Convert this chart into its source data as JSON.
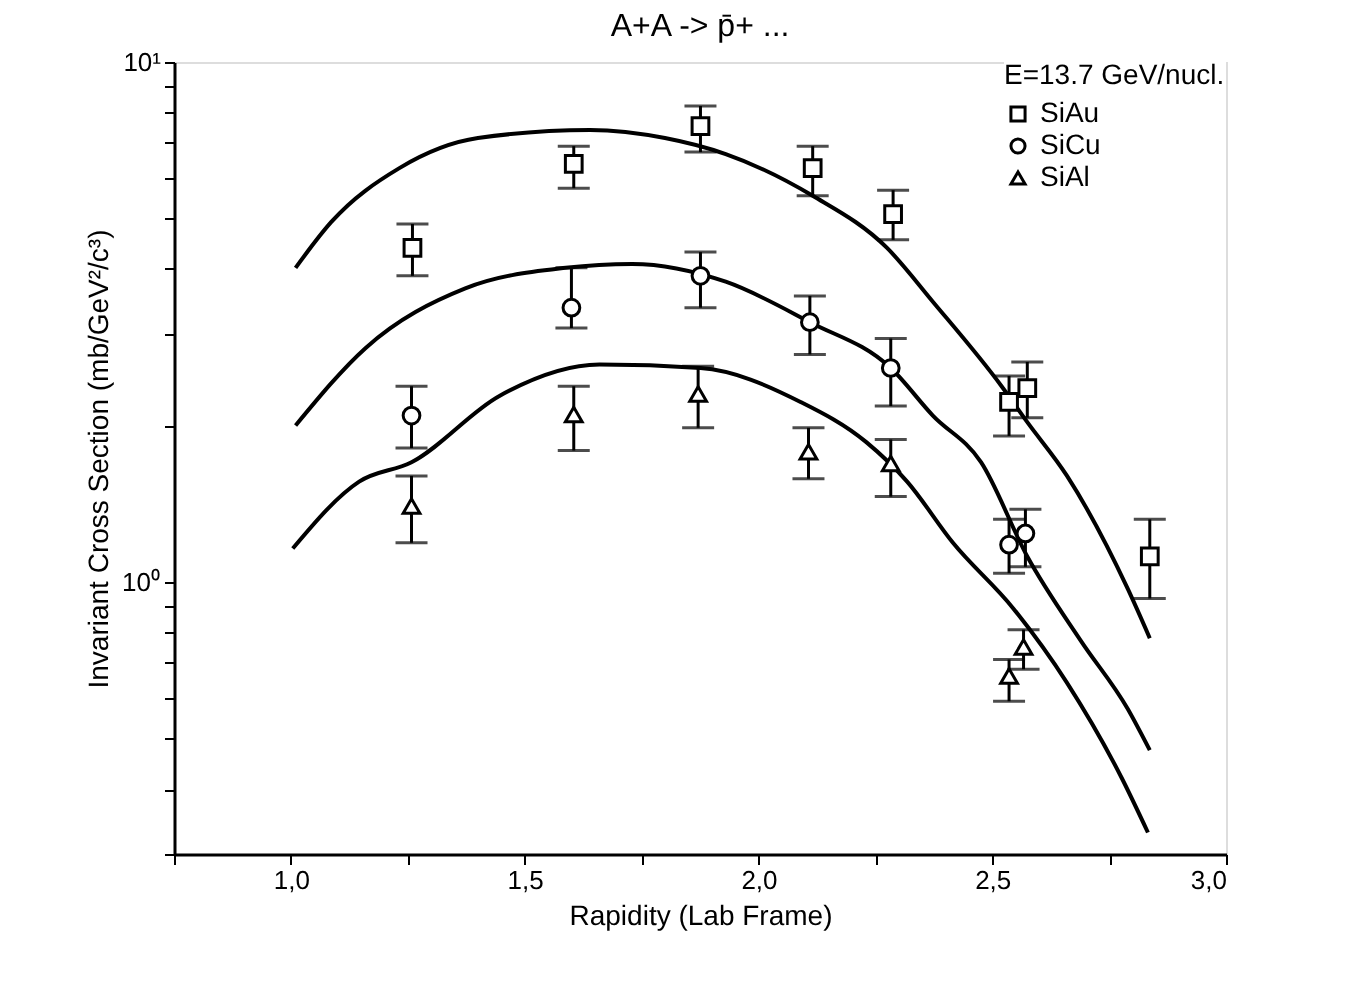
{
  "chart_data": {
    "type": "scatter",
    "title": "A+A -> p̄+ ...",
    "xlabel": "Rapidity (Lab Frame)",
    "ylabel": "Invariant Cross Section (mb/GeV²/c³)",
    "legend_title": "E=13.7 GeV/nucl.",
    "legend": "top right",
    "grid": false,
    "log": "y",
    "xlim": [
      0.75,
      3.0
    ],
    "ylim": [
      0.3,
      10
    ],
    "xticks": [
      {
        "value": 0.75,
        "label": null
      },
      {
        "value": 1.0,
        "label": "1,0"
      },
      {
        "value": 1.25,
        "label": null
      },
      {
        "value": 1.5,
        "label": "1,5"
      },
      {
        "value": 1.75,
        "label": null
      },
      {
        "value": 2.0,
        "label": "2,0"
      },
      {
        "value": 2.25,
        "label": null
      },
      {
        "value": 2.5,
        "label": "2,5"
      },
      {
        "value": 2.75,
        "label": null
      },
      {
        "value": 3.0,
        "label": "3,0"
      }
    ],
    "yticks": [
      {
        "value": 0.3,
        "label": null
      },
      {
        "value": 0.4,
        "label": null
      },
      {
        "value": 0.5,
        "label": null
      },
      {
        "value": 0.6,
        "label": null
      },
      {
        "value": 0.7,
        "label": null
      },
      {
        "value": 0.8,
        "label": null
      },
      {
        "value": 0.9,
        "label": null
      },
      {
        "value": 1,
        "label": "10⁰"
      },
      {
        "value": 2,
        "label": null
      },
      {
        "value": 3,
        "label": null
      },
      {
        "value": 4,
        "label": null
      },
      {
        "value": 5,
        "label": null
      },
      {
        "value": 6,
        "label": null
      },
      {
        "value": 7,
        "label": null
      },
      {
        "value": 8,
        "label": null
      },
      {
        "value": 9,
        "label": null
      },
      {
        "value": 10,
        "label": "10¹"
      }
    ],
    "series": [
      {
        "name": "SiAu",
        "marker": "square",
        "color": "#000000",
        "x": [
          1.26,
          1.605,
          1.876,
          2.116,
          2.288,
          2.536,
          2.575,
          2.837
        ],
        "values": [
          4.39,
          6.37,
          7.53,
          6.25,
          5.1,
          2.22,
          2.36,
          1.12
        ],
        "errors": [
          [
            3.88,
            4.88
          ],
          [
            5.72,
            6.89
          ],
          [
            6.71,
            8.23
          ],
          [
            5.53,
            6.89
          ],
          [
            4.55,
            5.67
          ],
          [
            1.91,
            2.49
          ],
          [
            2.07,
            2.65
          ],
          [
            0.93,
            1.32
          ]
        ]
      },
      {
        "name": "SiCu",
        "marker": "circle",
        "color": "#000000",
        "x": [
          1.258,
          1.6,
          1.876,
          2.11,
          2.283,
          2.536,
          2.571
        ],
        "values": [
          2.09,
          3.37,
          3.88,
          3.16,
          2.58,
          1.18,
          1.24
        ],
        "errors": [
          [
            1.81,
            2.38
          ],
          [
            3.08,
            4.02
          ],
          [
            3.37,
            4.31
          ],
          [
            2.74,
            3.55
          ],
          [
            2.18,
            2.94
          ],
          [
            1.04,
            1.32
          ],
          [
            1.07,
            1.38
          ]
        ]
      },
      {
        "name": "SiAl",
        "marker": "triangle",
        "color": "#000000",
        "x": [
          1.258,
          1.605,
          1.871,
          2.107,
          2.283,
          2.536,
          2.567
        ],
        "values": [
          1.4,
          2.1,
          2.3,
          1.78,
          1.69,
          0.66,
          0.75
        ],
        "errors": [
          [
            1.19,
            1.6
          ],
          [
            1.79,
            2.38
          ],
          [
            1.98,
            2.6
          ],
          [
            1.58,
            1.98
          ],
          [
            1.46,
            1.88
          ],
          [
            0.59,
            0.71
          ],
          [
            0.68,
            0.81
          ]
        ]
      },
      {
        "type": "line",
        "color": "#000000",
        "line_style": "solid",
        "x": [
          1.01,
          1.086,
          1.232,
          1.4,
          1.64,
          1.8,
          1.93,
          2.116,
          2.275,
          2.373,
          2.52,
          2.575,
          2.66,
          2.79,
          2.837
        ],
        "values": [
          4.02,
          4.92,
          6.25,
          7.14,
          7.4,
          7.14,
          6.65,
          5.53,
          4.39,
          3.46,
          2.38,
          2.03,
          1.6,
          0.97,
          0.78
        ]
      },
      {
        "type": "line",
        "color": "#000000",
        "line_style": "solid",
        "x": [
          1.01,
          1.16,
          1.373,
          1.588,
          1.73,
          1.93,
          2.11,
          2.283,
          2.373,
          2.476,
          2.575,
          2.69,
          2.79,
          2.837
        ],
        "values": [
          2.0,
          2.82,
          3.67,
          4.02,
          4.09,
          3.78,
          3.16,
          2.58,
          2.09,
          1.7,
          1.12,
          0.77,
          0.57,
          0.475
        ]
      },
      {
        "type": "line",
        "color": "#000000",
        "line_style": "solid",
        "x": [
          1.004,
          1.146,
          1.258,
          1.446,
          1.66,
          1.876,
          2.09,
          2.23,
          2.318,
          2.416,
          2.545,
          2.66,
          2.777,
          2.833
        ],
        "values": [
          1.16,
          1.56,
          1.7,
          2.28,
          2.62,
          2.58,
          2.22,
          1.86,
          1.56,
          1.19,
          0.89,
          0.64,
          0.42,
          0.33
        ]
      }
    ]
  }
}
